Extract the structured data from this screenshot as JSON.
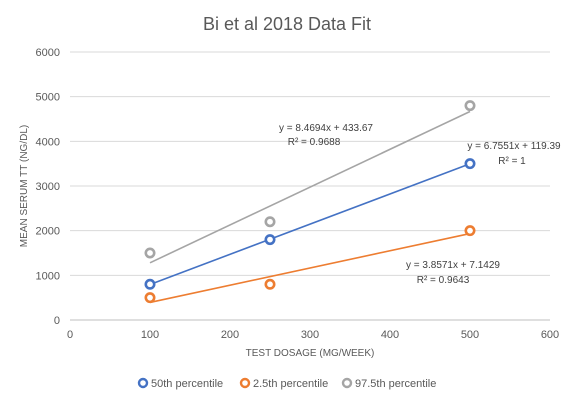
{
  "chart_data": {
    "type": "scatter",
    "title": "Bi et al 2018 Data Fit",
    "xlabel": "TEST DOSAGE (MG/WEEK)",
    "ylabel": "MEAN SERUM TT (NG/DL)",
    "xlim": [
      0,
      600
    ],
    "ylim": [
      0,
      6000
    ],
    "x_ticks": [
      0,
      100,
      200,
      300,
      400,
      500,
      600
    ],
    "y_ticks": [
      0,
      1000,
      2000,
      3000,
      4000,
      5000,
      6000
    ],
    "grid": "horizontal",
    "legend_position": "bottom",
    "series": [
      {
        "name": "50th percentile",
        "color": "#4472C4",
        "x": [
          100,
          250,
          500
        ],
        "y": [
          800,
          1800,
          3500
        ],
        "trendline": {
          "slope": 6.7551,
          "intercept": 119.39,
          "equation": "y = 6.7551x + 119.39",
          "r2": "R² = 1"
        }
      },
      {
        "name": "2.5th percentile",
        "color": "#ED7D31",
        "x": [
          100,
          250,
          500
        ],
        "y": [
          500,
          800,
          2000
        ],
        "trendline": {
          "slope": 3.8571,
          "intercept": 7.1429,
          "equation": "y = 3.8571x + 7.1429",
          "r2": "R² = 0.9643"
        }
      },
      {
        "name": "97.5th percentile",
        "color": "#A5A5A5",
        "x": [
          100,
          250,
          500
        ],
        "y": [
          1500,
          2200,
          4800
        ],
        "trendline": {
          "slope": 8.4694,
          "intercept": 433.67,
          "equation": "y = 8.4694x + 433.67",
          "r2": "R² = 0.9688"
        }
      }
    ]
  }
}
